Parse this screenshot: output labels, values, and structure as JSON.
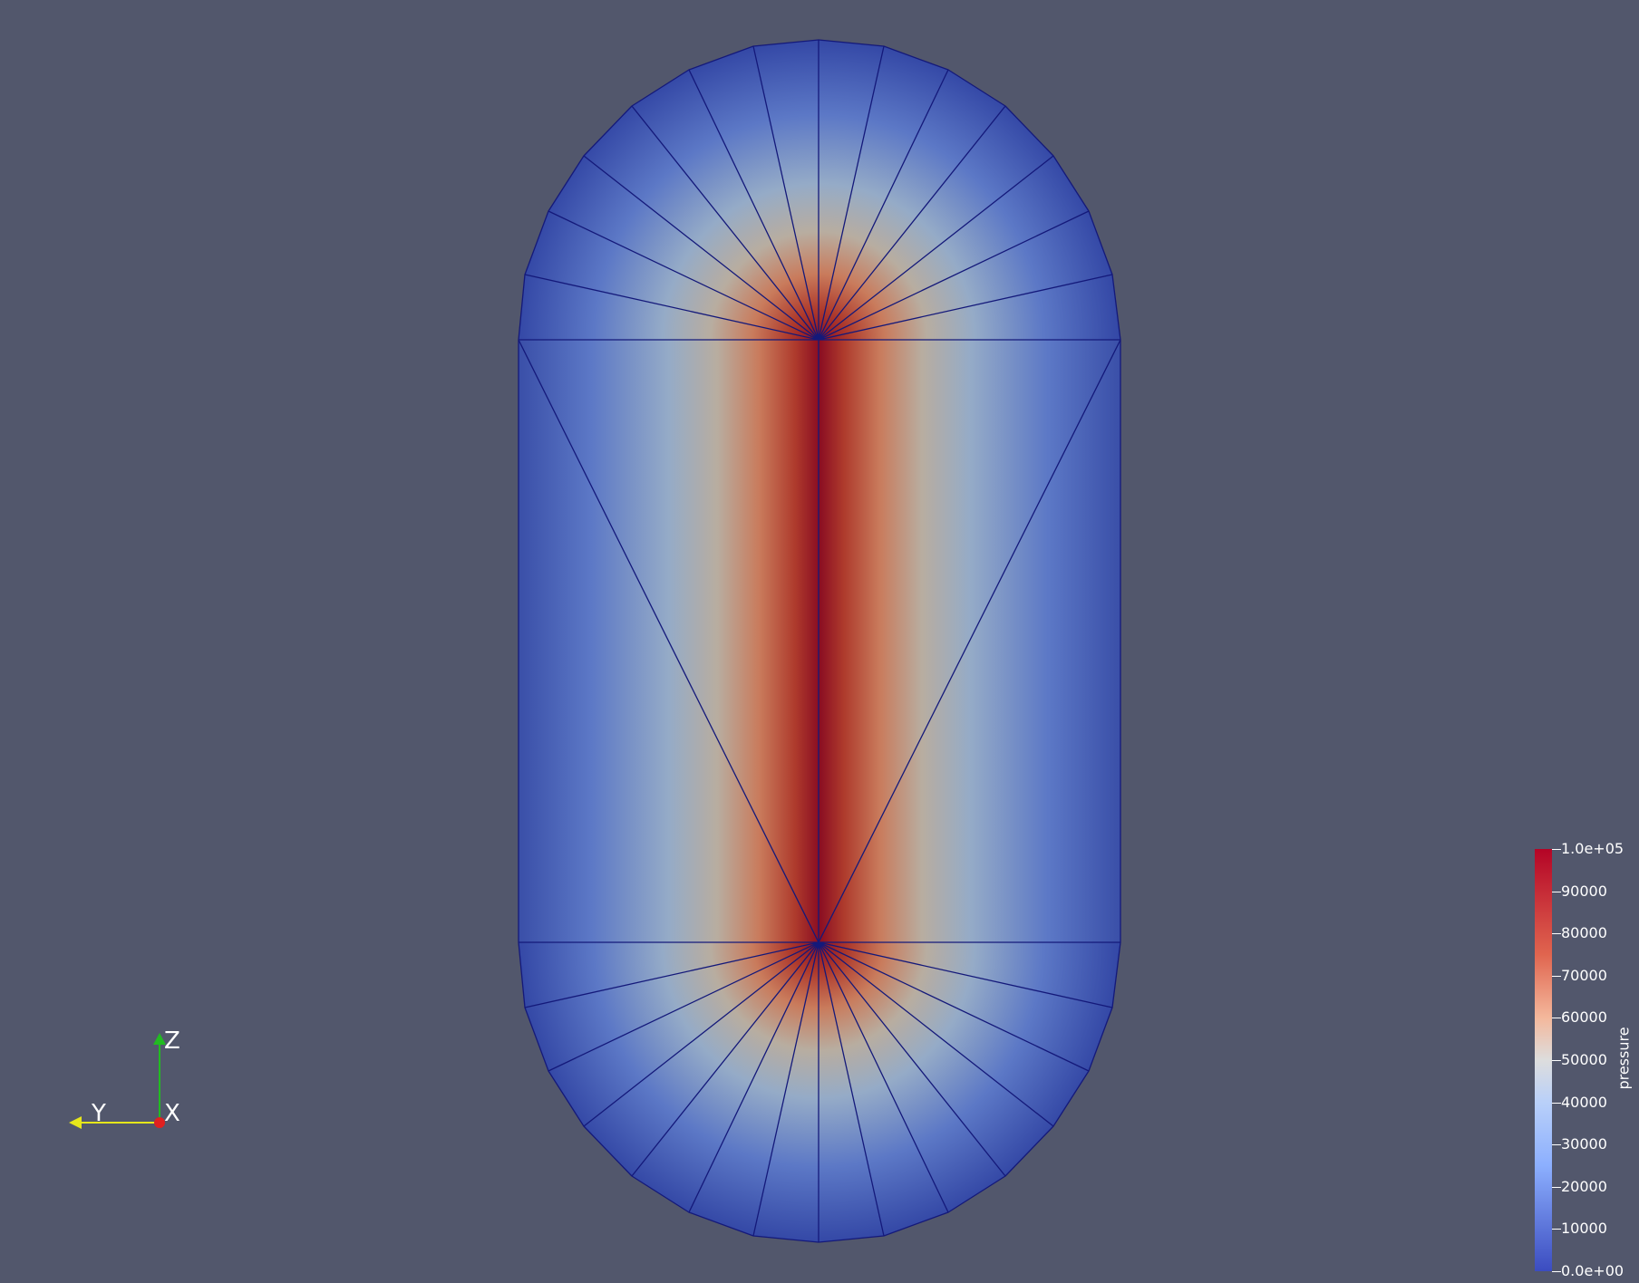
{
  "scene": {
    "background": "#52576c",
    "colormap": "cool-to-warm",
    "mesh_edge_color": "#14197a",
    "field": "pressure"
  },
  "orientation_axes": {
    "z_label": "Z",
    "y_label": "Y",
    "x_label": "X",
    "z_color": "#22bb22",
    "y_color": "#e6e61a",
    "x_color": "#e02020"
  },
  "colorbar": {
    "title": "pressure",
    "ticks": [
      {
        "label": "1.0e+05",
        "value": 100000
      },
      {
        "label": "90000",
        "value": 90000
      },
      {
        "label": "80000",
        "value": 80000
      },
      {
        "label": "70000",
        "value": 70000
      },
      {
        "label": "60000",
        "value": 60000
      },
      {
        "label": "50000",
        "value": 50000
      },
      {
        "label": "40000",
        "value": 40000
      },
      {
        "label": "30000",
        "value": 30000
      },
      {
        "label": "20000",
        "value": 20000
      },
      {
        "label": "10000",
        "value": 10000
      },
      {
        "label": "0.0e+00",
        "value": 0
      }
    ]
  }
}
